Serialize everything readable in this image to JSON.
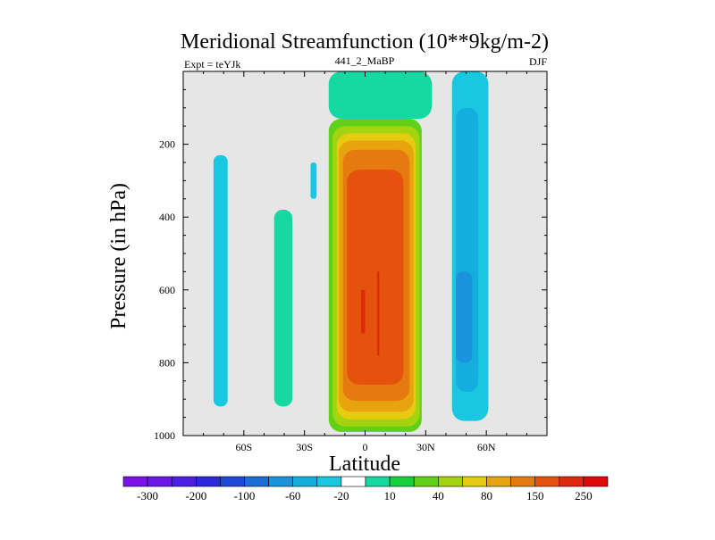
{
  "chart_data": {
    "type": "heatmap",
    "title": "Meridional Streamfunction (10**9kg/m-2)",
    "subtitle_left": "Expt = teYJk",
    "subtitle_center": "441_2_MaBP",
    "subtitle_right": "DJF",
    "xlabel": "Latitude",
    "ylabel": "Pressure (in hPa)",
    "xlim": [
      -90,
      90
    ],
    "ylim": [
      1000,
      0
    ],
    "x_ticks": [
      {
        "value": -60,
        "label": "60S"
      },
      {
        "value": -30,
        "label": "30S"
      },
      {
        "value": 0,
        "label": "0"
      },
      {
        "value": 30,
        "label": "30N"
      },
      {
        "value": 60,
        "label": "60N"
      }
    ],
    "y_ticks": [
      {
        "value": 200,
        "label": "200"
      },
      {
        "value": 400,
        "label": "400"
      },
      {
        "value": 600,
        "label": "600"
      },
      {
        "value": 800,
        "label": "800"
      },
      {
        "value": 1000,
        "label": "1000"
      }
    ],
    "background_color": "#e6e6e6",
    "colorbar": {
      "colors": [
        "#7b12e6",
        "#6a18e8",
        "#4a1ee3",
        "#2c29dd",
        "#1d48d8",
        "#1a6fd6",
        "#1a92dc",
        "#13aedf",
        "#17c8e0",
        "#ffffff",
        "#16d8a0",
        "#18d03a",
        "#60d018",
        "#a4d410",
        "#e6cc10",
        "#e8a40e",
        "#e67a10",
        "#e4520e",
        "#e0280c",
        "#dc0a0a"
      ],
      "labels": [
        {
          "after_box": 1,
          "text": "-300"
        },
        {
          "after_box": 3,
          "text": "-200"
        },
        {
          "after_box": 5,
          "text": "-100"
        },
        {
          "after_box": 7,
          "text": "-60"
        },
        {
          "after_box": 9,
          "text": "-20"
        },
        {
          "after_box": 11,
          "text": "10"
        },
        {
          "after_box": 13,
          "text": "40"
        },
        {
          "after_box": 15,
          "text": "80"
        },
        {
          "after_box": 17,
          "text": "150"
        },
        {
          "after_box": 19,
          "text": "250"
        }
      ]
    },
    "cells": [
      {
        "lat": [
          -75,
          -68
        ],
        "p": [
          230,
          920
        ],
        "color": "#17c8e0"
      },
      {
        "lat": [
          -45,
          -36
        ],
        "p": [
          380,
          920
        ],
        "color": "#16d8a0"
      },
      {
        "lat": [
          -27,
          -24
        ],
        "p": [
          250,
          350
        ],
        "color": "#17c8e0"
      },
      {
        "lat": [
          43,
          61
        ],
        "p": [
          0,
          960
        ],
        "color": "#17c8e0"
      },
      {
        "lat": [
          45,
          56
        ],
        "p": [
          100,
          880
        ],
        "color": "#13aedf"
      },
      {
        "lat": [
          45,
          53
        ],
        "p": [
          550,
          800
        ],
        "color": "#1a92dc"
      },
      {
        "lat": [
          -18,
          33
        ],
        "p": [
          0,
          130
        ],
        "color": "#16d8a0"
      },
      {
        "lat": [
          -18,
          28
        ],
        "p": [
          130,
          990
        ],
        "color": "#60d018"
      },
      {
        "lat": [
          -16,
          27
        ],
        "p": [
          150,
          975
        ],
        "color": "#a4d410"
      },
      {
        "lat": [
          -14,
          25
        ],
        "p": [
          170,
          955
        ],
        "color": "#e6cc10"
      },
      {
        "lat": [
          -13,
          24
        ],
        "p": [
          190,
          935
        ],
        "color": "#e8a40e"
      },
      {
        "lat": [
          -11,
          22
        ],
        "p": [
          215,
          905
        ],
        "color": "#e67a10"
      },
      {
        "lat": [
          -9,
          19
        ],
        "p": [
          270,
          860
        ],
        "color": "#e4520e"
      },
      {
        "lat": [
          -2,
          0
        ],
        "p": [
          600,
          720
        ],
        "color": "#e0280c"
      },
      {
        "lat": [
          6,
          7
        ],
        "p": [
          550,
          780
        ],
        "color": "#e0280c"
      }
    ]
  }
}
